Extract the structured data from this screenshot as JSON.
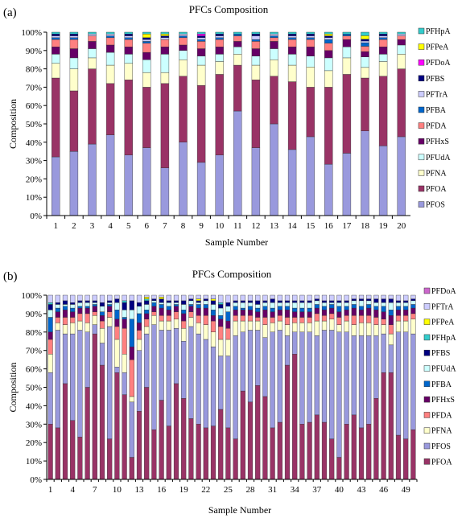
{
  "chart_data": [
    {
      "panel": "(a)",
      "type": "bar",
      "stacked": "percent",
      "title": "PFCs Composition",
      "xlabel": "Sample Number",
      "ylabel": "Composition",
      "ylim": [
        0,
        100
      ],
      "yticks": [
        "0%",
        "10%",
        "20%",
        "30%",
        "40%",
        "50%",
        "60%",
        "70%",
        "80%",
        "90%",
        "100%"
      ],
      "categories": [
        "1",
        "2",
        "3",
        "4",
        "5",
        "6",
        "7",
        "8",
        "9",
        "10",
        "11",
        "12",
        "13",
        "14",
        "15",
        "16",
        "17",
        "18",
        "19",
        "20"
      ],
      "legend_position": "right",
      "legend_order": [
        "PFHpA",
        "PFPeA",
        "PFDoA",
        "PFBS",
        "PFTrA",
        "PFBA",
        "PFDA",
        "PFHxS",
        "PFUdA",
        "PFNA",
        "PFOA",
        "PFOS"
      ],
      "series": [
        {
          "name": "PFOS",
          "color": "#9999dd",
          "values": [
            32,
            35,
            39,
            44,
            33,
            37,
            26,
            40,
            29,
            33,
            57,
            37,
            50,
            36,
            43,
            28,
            34,
            48,
            38,
            43
          ]
        },
        {
          "name": "PFOA",
          "color": "#993366",
          "values": [
            43,
            33,
            41,
            28,
            41,
            33,
            46,
            36,
            42,
            44,
            25,
            37,
            26,
            37,
            27,
            42,
            43,
            30,
            38,
            37
          ]
        },
        {
          "name": "PFNA",
          "color": "#ffffcc",
          "values": [
            8,
            12,
            6,
            10,
            9,
            8,
            6,
            9,
            11,
            7,
            6,
            8,
            9,
            9,
            11,
            9,
            9,
            6,
            8,
            8
          ]
        },
        {
          "name": "PFUdA",
          "color": "#ccffff",
          "values": [
            5,
            6,
            5,
            7,
            5,
            7,
            10,
            5,
            5,
            4,
            4,
            5,
            6,
            6,
            6,
            7,
            6,
            6,
            4,
            5
          ]
        },
        {
          "name": "PFHxS",
          "color": "#660066",
          "values": [
            4,
            5,
            4,
            4,
            4,
            4,
            4,
            3,
            4,
            4,
            3,
            4,
            4,
            4,
            5,
            4,
            4,
            3,
            4,
            3
          ]
        },
        {
          "name": "PFDA",
          "color": "#ff8080",
          "values": [
            4,
            5,
            3,
            4,
            4,
            5,
            4,
            4,
            4,
            4,
            3,
            4,
            2,
            4,
            4,
            4,
            2,
            3,
            4,
            2
          ]
        },
        {
          "name": "PFBA",
          "color": "#0066cc",
          "values": [
            1,
            1,
            0,
            1,
            1,
            1,
            0,
            1,
            1,
            1,
            1,
            1,
            1,
            1,
            1,
            2,
            1,
            2,
            1,
            0
          ]
        },
        {
          "name": "PFTrA",
          "color": "#ccccff",
          "values": [
            1,
            1,
            1,
            1,
            1,
            1,
            1,
            1,
            1,
            1,
            0,
            2,
            1,
            1,
            1,
            1,
            0,
            1,
            1,
            1
          ]
        },
        {
          "name": "PFBS",
          "color": "#000080",
          "values": [
            1,
            1,
            0,
            0,
            1,
            1,
            1,
            0,
            1,
            1,
            0,
            1,
            0,
            1,
            1,
            1,
            0,
            1,
            1,
            0
          ]
        },
        {
          "name": "PFDoA",
          "color": "#ff00ff",
          "values": [
            0,
            0,
            0,
            0,
            0,
            0,
            0,
            0,
            1,
            0,
            0,
            0,
            0,
            0,
            0,
            0,
            0,
            0,
            0,
            0
          ]
        },
        {
          "name": "PFPeA",
          "color": "#ffff00",
          "values": [
            0,
            0,
            0,
            0,
            0,
            2,
            1,
            0,
            0,
            0,
            0,
            0,
            0,
            0,
            0,
            1,
            0,
            2,
            0,
            0
          ]
        },
        {
          "name": "PFHpA",
          "color": "#33cccc",
          "values": [
            1,
            1,
            1,
            1,
            1,
            1,
            1,
            1,
            1,
            1,
            1,
            1,
            1,
            1,
            1,
            1,
            1,
            2,
            1,
            1
          ]
        }
      ]
    },
    {
      "panel": "(b)",
      "type": "bar",
      "stacked": "percent",
      "title": "PFCs Composition",
      "xlabel": "Sample Number",
      "ylabel": "Composition",
      "ylim": [
        0,
        100
      ],
      "yticks": [
        "0%",
        "10%",
        "20%",
        "30%",
        "40%",
        "50%",
        "60%",
        "70%",
        "80%",
        "90%",
        "100%"
      ],
      "n_samples": 50,
      "tick_labels": [
        "1",
        "4",
        "7",
        "10",
        "13",
        "16",
        "19",
        "22",
        "25",
        "28",
        "31",
        "34",
        "37",
        "40",
        "43",
        "46",
        "49"
      ],
      "legend_position": "right",
      "legend_order": [
        "PFDoA",
        "PFTrA",
        "PFPeA",
        "PFHpA",
        "PFBS",
        "PFUdA",
        "PFBA",
        "PFHxS",
        "PFDA",
        "PFNA",
        "PFOS",
        "PFOA"
      ],
      "series": [
        {
          "name": "PFOA",
          "color": "#993366",
          "values": [
            30,
            28,
            52,
            32,
            23,
            50,
            79,
            62,
            22,
            58,
            46,
            12,
            37,
            50,
            27,
            43,
            29,
            52,
            44,
            33,
            30,
            28,
            29,
            38,
            28,
            22,
            48,
            42,
            51,
            45,
            28,
            31,
            62,
            68,
            30,
            31,
            35,
            31,
            22,
            12,
            30,
            35,
            28,
            30,
            44,
            58,
            58,
            24,
            22,
            27
          ]
        },
        {
          "name": "PFOS",
          "color": "#9999dd",
          "values": [
            28,
            53,
            27,
            47,
            58,
            30,
            5,
            12,
            61,
            3,
            12,
            30,
            33,
            29,
            57,
            38,
            52,
            30,
            31,
            50,
            49,
            48,
            43,
            29,
            39,
            56,
            32,
            39,
            30,
            32,
            52,
            50,
            16,
            12,
            50,
            49,
            43,
            50,
            59,
            68,
            50,
            43,
            50,
            48,
            34,
            21,
            15,
            56,
            58,
            52
          ]
        },
        {
          "name": "PFNA",
          "color": "#ffffcc",
          "values": [
            10,
            4,
            5,
            6,
            5,
            5,
            5,
            8,
            5,
            15,
            10,
            3,
            6,
            4,
            5,
            5,
            5,
            5,
            7,
            5,
            6,
            8,
            8,
            9,
            9,
            8,
            6,
            5,
            5,
            7,
            5,
            5,
            6,
            5,
            5,
            5,
            8,
            5,
            6,
            4,
            6,
            6,
            7,
            7,
            6,
            5,
            6,
            6,
            6,
            8
          ]
        },
        {
          "name": "PFDA",
          "color": "#ff8080",
          "values": [
            8,
            3,
            4,
            3,
            4,
            5,
            2,
            4,
            3,
            7,
            14,
            20,
            5,
            4,
            2,
            3,
            3,
            4,
            4,
            3,
            4,
            5,
            6,
            7,
            6,
            3,
            3,
            3,
            2,
            4,
            3,
            3,
            4,
            3,
            3,
            3,
            4,
            3,
            3,
            4,
            3,
            5,
            4,
            4,
            4,
            3,
            5,
            3,
            3,
            3
          ]
        },
        {
          "name": "PFHxS",
          "color": "#660066",
          "values": [
            4,
            3,
            4,
            3,
            3,
            3,
            3,
            3,
            3,
            4,
            5,
            7,
            4,
            3,
            3,
            4,
            3,
            3,
            4,
            3,
            4,
            4,
            3,
            4,
            4,
            3,
            3,
            3,
            3,
            4,
            3,
            3,
            4,
            3,
            3,
            3,
            3,
            3,
            3,
            3,
            3,
            4,
            3,
            4,
            4,
            4,
            5,
            3,
            3,
            3
          ]
        },
        {
          "name": "PFBA",
          "color": "#0066cc",
          "values": [
            8,
            2,
            2,
            2,
            1,
            1,
            1,
            2,
            1,
            5,
            1,
            15,
            5,
            2,
            2,
            2,
            2,
            1,
            2,
            1,
            2,
            2,
            3,
            2,
            5,
            2,
            1,
            2,
            2,
            2,
            2,
            2,
            2,
            2,
            2,
            2,
            2,
            2,
            2,
            3,
            2,
            2,
            2,
            2,
            2,
            3,
            3,
            2,
            2,
            2
          ]
        },
        {
          "name": "PFUdA",
          "color": "#ccffff",
          "values": [
            4,
            2,
            1,
            2,
            2,
            2,
            1,
            3,
            1,
            4,
            4,
            5,
            4,
            3,
            1,
            1,
            2,
            1,
            3,
            2,
            1,
            2,
            3,
            4,
            3,
            2,
            3,
            2,
            2,
            2,
            3,
            2,
            2,
            3,
            3,
            3,
            2,
            2,
            1,
            2,
            2,
            2,
            3,
            2,
            2,
            2,
            4,
            2,
            2,
            2
          ]
        },
        {
          "name": "PFBS",
          "color": "#000080",
          "values": [
            3,
            1,
            2,
            1,
            1,
            1,
            1,
            2,
            1,
            2,
            4,
            5,
            2,
            2,
            1,
            2,
            1,
            1,
            2,
            1,
            1,
            1,
            2,
            2,
            2,
            1,
            1,
            1,
            2,
            1,
            2,
            1,
            1,
            1,
            1,
            1,
            1,
            1,
            1,
            1,
            1,
            1,
            1,
            1,
            2,
            2,
            2,
            1,
            1,
            1
          ]
        },
        {
          "name": "PFHpA",
          "color": "#33cccc",
          "values": [
            1,
            0,
            0,
            0,
            0,
            0,
            0,
            0,
            0,
            0,
            1,
            0,
            0,
            1,
            0,
            0,
            0,
            0,
            0,
            0,
            0,
            0,
            0,
            1,
            0,
            0,
            0,
            0,
            0,
            0,
            0,
            0,
            0,
            0,
            0,
            0,
            0,
            0,
            0,
            0,
            0,
            0,
            0,
            0,
            0,
            0,
            0,
            0,
            0,
            0
          ]
        },
        {
          "name": "PFPeA",
          "color": "#ffff00",
          "values": [
            0,
            0,
            0,
            0,
            0,
            0,
            0,
            0,
            0,
            0,
            0,
            0,
            0,
            1,
            0,
            1,
            0,
            0,
            0,
            0,
            1,
            0,
            1,
            0,
            0,
            0,
            0,
            0,
            0,
            0,
            0,
            0,
            0,
            0,
            0,
            0,
            0,
            0,
            0,
            0,
            0,
            0,
            0,
            0,
            0,
            0,
            0,
            0,
            0,
            0
          ]
        },
        {
          "name": "PFTrA",
          "color": "#ccccff",
          "values": [
            4,
            4,
            3,
            4,
            3,
            3,
            3,
            4,
            3,
            2,
            3,
            3,
            4,
            1,
            2,
            1,
            3,
            3,
            3,
            2,
            2,
            2,
            2,
            4,
            4,
            3,
            3,
            3,
            3,
            3,
            2,
            3,
            3,
            3,
            3,
            3,
            2,
            3,
            3,
            3,
            3,
            2,
            2,
            2,
            2,
            2,
            2,
            3,
            3,
            2
          ]
        },
        {
          "name": "PFDoA",
          "color": "#cc66cc",
          "values": [
            0,
            0,
            0,
            0,
            0,
            0,
            0,
            0,
            0,
            0,
            0,
            0,
            0,
            0,
            0,
            0,
            0,
            0,
            0,
            0,
            0,
            0,
            0,
            0,
            0,
            0,
            0,
            0,
            0,
            0,
            0,
            0,
            0,
            0,
            0,
            0,
            0,
            0,
            0,
            0,
            0,
            0,
            0,
            0,
            0,
            0,
            0,
            0,
            0,
            0
          ]
        }
      ]
    }
  ]
}
